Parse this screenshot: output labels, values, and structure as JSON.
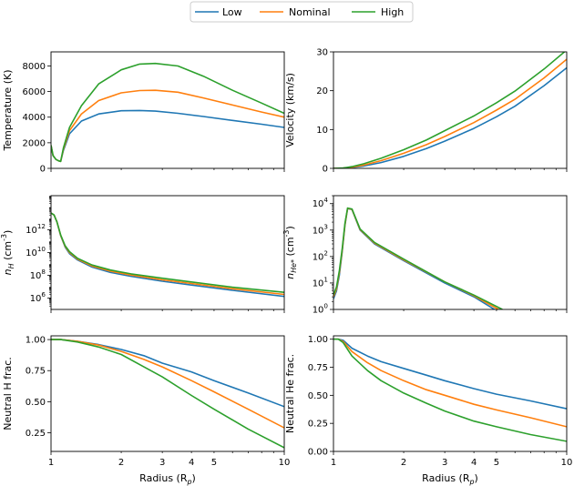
{
  "legend": {
    "placement": "top-center",
    "entries": [
      {
        "label": "Low",
        "color": "#1f77b4"
      },
      {
        "label": "Nominal",
        "color": "#ff7f0e"
      },
      {
        "label": "High",
        "color": "#2ca02c"
      }
    ]
  },
  "chart_data": [
    {
      "id": "temperature",
      "type": "line",
      "xscale": "log",
      "yscale": "linear",
      "xlim": [
        1,
        10
      ],
      "ylim": [
        0,
        9100
      ],
      "xticks": [],
      "xticklabels": [],
      "yticks": [
        0,
        2000,
        4000,
        6000,
        8000
      ],
      "yticklabels": [
        "0",
        "2000",
        "4000",
        "6000",
        "8000"
      ],
      "xlabel": "",
      "ylabel": "Temperature (K)",
      "series": [
        {
          "name": "Low",
          "x": [
            1,
            1.02,
            1.05,
            1.08,
            1.1,
            1.13,
            1.2,
            1.35,
            1.6,
            2,
            2.4,
            2.8,
            3.5,
            4.5,
            6,
            8,
            10
          ],
          "y": [
            1800,
            1000,
            700,
            580,
            550,
            1400,
            2700,
            3700,
            4250,
            4500,
            4520,
            4470,
            4300,
            4050,
            3750,
            3450,
            3200
          ]
        },
        {
          "name": "Nominal",
          "x": [
            1,
            1.02,
            1.05,
            1.08,
            1.1,
            1.13,
            1.2,
            1.35,
            1.6,
            2,
            2.4,
            2.8,
            3.5,
            4.5,
            6,
            8,
            10
          ],
          "y": [
            1800,
            1000,
            700,
            580,
            550,
            1500,
            2950,
            4250,
            5300,
            5900,
            6080,
            6100,
            5950,
            5500,
            4950,
            4400,
            4000
          ]
        },
        {
          "name": "High",
          "x": [
            1,
            1.02,
            1.05,
            1.08,
            1.1,
            1.13,
            1.2,
            1.35,
            1.6,
            2,
            2.4,
            2.8,
            3.5,
            4.5,
            6,
            8,
            10
          ],
          "y": [
            1800,
            1000,
            700,
            580,
            550,
            1600,
            3200,
            4900,
            6600,
            7700,
            8150,
            8200,
            8000,
            7200,
            6100,
            5100,
            4300
          ]
        }
      ]
    },
    {
      "id": "velocity",
      "type": "line",
      "xscale": "log",
      "yscale": "linear",
      "xlim": [
        1,
        10
      ],
      "ylim": [
        0,
        30
      ],
      "xticks": [],
      "xticklabels": [],
      "yticks": [
        0,
        10,
        20,
        30
      ],
      "yticklabels": [
        "0",
        "10",
        "20",
        "30"
      ],
      "xlabel": "",
      "ylabel": "Velocity (km/s)",
      "series": [
        {
          "name": "Low",
          "x": [
            1,
            1.1,
            1.2,
            1.35,
            1.6,
            2,
            2.5,
            3,
            4,
            5,
            6,
            8,
            10
          ],
          "y": [
            0,
            0.05,
            0.2,
            0.6,
            1.5,
            3.1,
            5.1,
            7,
            10.3,
            13.3,
            16,
            21.3,
            25.9
          ]
        },
        {
          "name": "Nominal",
          "x": [
            1,
            1.1,
            1.2,
            1.35,
            1.6,
            2,
            2.5,
            3,
            4,
            5,
            6,
            8,
            10
          ],
          "y": [
            0,
            0.07,
            0.3,
            0.85,
            2,
            3.9,
            6.1,
            8.2,
            11.8,
            15,
            17.8,
            23.3,
            28.1
          ]
        },
        {
          "name": "High",
          "x": [
            1,
            1.1,
            1.2,
            1.35,
            1.6,
            2,
            2.5,
            3,
            4,
            5,
            6,
            8,
            10
          ],
          "y": [
            0,
            0.1,
            0.45,
            1.2,
            2.6,
            4.8,
            7.3,
            9.7,
            13.5,
            16.9,
            19.9,
            25.6,
            30.5
          ]
        }
      ]
    },
    {
      "id": "n_H",
      "type": "line",
      "xscale": "log",
      "yscale": "log",
      "xlim": [
        1,
        10
      ],
      "ylim": [
        100000,
        1000000000000000
      ],
      "xticks": [],
      "xticklabels": [],
      "yticks": [
        1000000,
        100000000,
        10000000000,
        1000000000000
      ],
      "yticklabels": [
        "10^6",
        "10^8",
        "10^10",
        "10^12"
      ],
      "xlabel": "",
      "ylabel": "n_H (cm^-3)",
      "series": [
        {
          "name": "Low",
          "x": [
            1,
            1.03,
            1.06,
            1.1,
            1.15,
            1.2,
            1.3,
            1.5,
            1.8,
            2.2,
            3,
            4,
            6,
            10
          ],
          "y": [
            30000000000000.0,
            20000000000000.0,
            5000000000000.0,
            300000000000.0,
            30000000000.0,
            8000000000.0,
            2200000000.0,
            520000000.0,
            180000000.0,
            82000000.0,
            30000000.0,
            14000000.0,
            4800000.0,
            1400000.0
          ]
        },
        {
          "name": "Nominal",
          "x": [
            1,
            1.03,
            1.06,
            1.1,
            1.15,
            1.2,
            1.3,
            1.5,
            1.8,
            2.2,
            3,
            4,
            6,
            10
          ],
          "y": [
            30000000000000.0,
            20000000000000.0,
            5000000000000.0,
            320000000000.0,
            35000000000.0,
            10000000000.0,
            2600000000.0,
            650000000.0,
            230000000.0,
            105000000.0,
            40000000.0,
            19000000.0,
            6500000.0,
            2100000.0
          ]
        },
        {
          "name": "High",
          "x": [
            1,
            1.03,
            1.06,
            1.1,
            1.15,
            1.2,
            1.3,
            1.5,
            1.8,
            2.2,
            3,
            4,
            6,
            10
          ],
          "y": [
            30000000000000.0,
            20000000000000.0,
            5000000000000.0,
            350000000000.0,
            40000000000.0,
            12000000000.0,
            3100000000.0,
            800000000.0,
            290000000.0,
            135000000.0,
            55000000.0,
            26000000.0,
            9000000.0,
            3200000.0
          ]
        }
      ]
    },
    {
      "id": "n_He",
      "type": "line",
      "xscale": "log",
      "yscale": "log",
      "xlim": [
        1,
        10
      ],
      "ylim": [
        1,
        20000
      ],
      "xticks": [],
      "xticklabels": [],
      "yticks": [
        1,
        10,
        100,
        1000,
        10000
      ],
      "yticklabels": [
        "10^0",
        "10^1",
        "10^2",
        "10^3",
        "10^4"
      ],
      "xlabel": "",
      "ylabel": "n_He* (cm^-3)",
      "series": [
        {
          "name": "Low",
          "x": [
            1,
            1.03,
            1.06,
            1.09,
            1.12,
            1.15,
            1.2,
            1.3,
            1.5,
            2,
            3,
            4,
            4.9
          ],
          "y": [
            2.5,
            5,
            20,
            150,
            1500,
            6500,
            6000,
            1000,
            300,
            70,
            10,
            3,
            1
          ]
        },
        {
          "name": "Nominal",
          "x": [
            1,
            1.03,
            1.06,
            1.09,
            1.12,
            1.15,
            1.2,
            1.3,
            1.5,
            2,
            3,
            4,
            5.1
          ],
          "y": [
            3,
            6,
            25,
            170,
            1600,
            6600,
            6100,
            1050,
            320,
            75,
            11,
            3.3,
            1
          ]
        },
        {
          "name": "High",
          "x": [
            1,
            1.03,
            1.06,
            1.09,
            1.12,
            1.15,
            1.2,
            1.3,
            1.5,
            2,
            3,
            4,
            5.3
          ],
          "y": [
            3.5,
            7,
            30,
            200,
            1800,
            6800,
            6300,
            1100,
            340,
            80,
            11,
            3.5,
            1
          ]
        }
      ]
    },
    {
      "id": "neutral_H",
      "type": "line",
      "xscale": "log",
      "yscale": "linear",
      "xlim": [
        1,
        10
      ],
      "ylim": [
        0.1,
        1.03
      ],
      "xticks": [
        1,
        2,
        3,
        4,
        5,
        10
      ],
      "xticklabels": [
        "1",
        "2",
        "3",
        "4",
        "5",
        "10"
      ],
      "yticks": [
        0.25,
        0.5,
        0.75,
        1.0
      ],
      "yticklabels": [
        "0.25",
        "0.50",
        "0.75",
        "1.00"
      ],
      "xlabel": "Radius (R_p)",
      "ylabel": "Neutral H frac.",
      "series": [
        {
          "name": "Low",
          "x": [
            1,
            1.1,
            1.3,
            1.6,
            2,
            2.5,
            3,
            4,
            5,
            7,
            10
          ],
          "y": [
            1,
            1,
            0.985,
            0.96,
            0.92,
            0.87,
            0.81,
            0.74,
            0.67,
            0.57,
            0.46
          ]
        },
        {
          "name": "Nominal",
          "x": [
            1,
            1.1,
            1.3,
            1.6,
            2,
            2.5,
            3,
            4,
            5,
            7,
            10
          ],
          "y": [
            1,
            1,
            0.985,
            0.955,
            0.905,
            0.84,
            0.78,
            0.67,
            0.58,
            0.44,
            0.29
          ]
        },
        {
          "name": "High",
          "x": [
            1,
            1.1,
            1.3,
            1.6,
            2,
            2.5,
            3,
            4,
            5,
            7,
            10
          ],
          "y": [
            1,
            1,
            0.98,
            0.94,
            0.88,
            0.78,
            0.7,
            0.55,
            0.44,
            0.28,
            0.13
          ]
        }
      ]
    },
    {
      "id": "neutral_He",
      "type": "line",
      "xscale": "log",
      "yscale": "linear",
      "xlim": [
        1,
        10
      ],
      "ylim": [
        0,
        1.03
      ],
      "xticks": [
        1,
        2,
        3,
        4,
        5,
        10
      ],
      "xticklabels": [
        "1",
        "2",
        "3",
        "4",
        "5",
        "10"
      ],
      "yticks": [
        0,
        0.25,
        0.5,
        0.75,
        1.0
      ],
      "yticklabels": [
        "0.00",
        "0.25",
        "0.50",
        "0.75",
        "1.00"
      ],
      "xlabel": "Radius (R_p)",
      "ylabel": "Neutral He frac.",
      "series": [
        {
          "name": "Low",
          "x": [
            1,
            1.05,
            1.1,
            1.2,
            1.4,
            1.6,
            2,
            2.5,
            3,
            4,
            5,
            7,
            10
          ],
          "y": [
            1,
            1,
            0.99,
            0.92,
            0.85,
            0.8,
            0.74,
            0.68,
            0.63,
            0.56,
            0.51,
            0.45,
            0.38
          ]
        },
        {
          "name": "Nominal",
          "x": [
            1,
            1.05,
            1.1,
            1.2,
            1.4,
            1.6,
            2,
            2.5,
            3,
            4,
            5,
            7,
            10
          ],
          "y": [
            1,
            1,
            0.98,
            0.89,
            0.79,
            0.72,
            0.63,
            0.55,
            0.5,
            0.42,
            0.37,
            0.3,
            0.22
          ]
        },
        {
          "name": "High",
          "x": [
            1,
            1.05,
            1.1,
            1.2,
            1.4,
            1.6,
            2,
            2.5,
            3,
            4,
            5,
            7,
            10
          ],
          "y": [
            1,
            1,
            0.97,
            0.85,
            0.72,
            0.63,
            0.52,
            0.43,
            0.36,
            0.27,
            0.22,
            0.15,
            0.09
          ]
        }
      ]
    }
  ]
}
